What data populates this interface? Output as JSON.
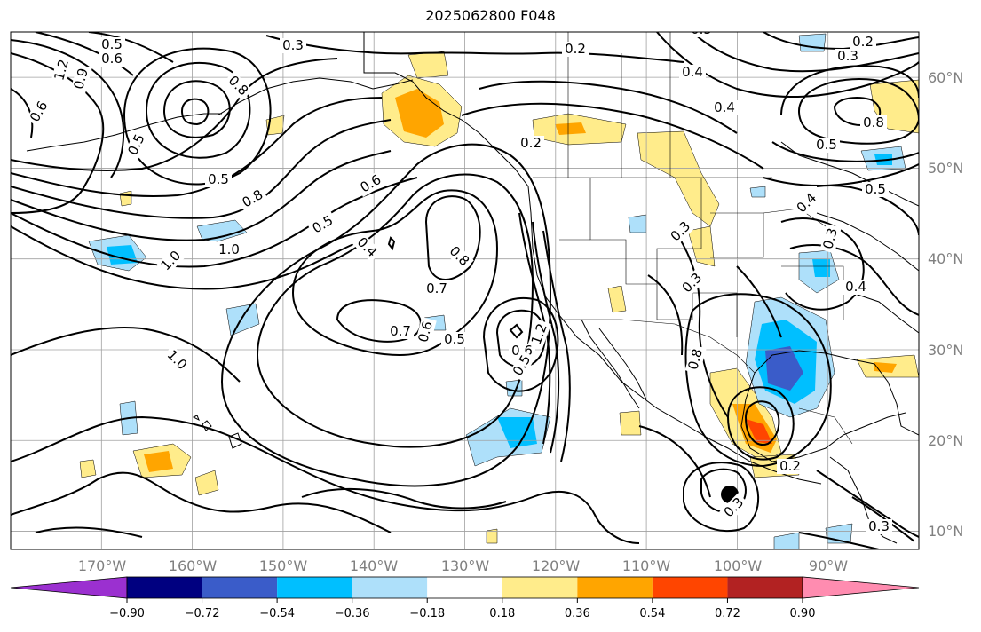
{
  "title": "2025062800 F048",
  "map": {
    "lon_range": [
      -180,
      -80
    ],
    "lat_range": [
      8,
      65
    ],
    "lon_ticks": [
      {
        "value": -170,
        "label": "170°W"
      },
      {
        "value": -160,
        "label": "160°W"
      },
      {
        "value": -150,
        "label": "150°W"
      },
      {
        "value": -140,
        "label": "140°W"
      },
      {
        "value": -130,
        "label": "130°W"
      },
      {
        "value": -120,
        "label": "120°W"
      },
      {
        "value": -110,
        "label": "110°W"
      },
      {
        "value": -100,
        "label": "100°W"
      },
      {
        "value": -90,
        "label": "90°W"
      }
    ],
    "lat_ticks": [
      {
        "value": 10,
        "label": "10°N"
      },
      {
        "value": 20,
        "label": "20°N"
      },
      {
        "value": 30,
        "label": "30°N"
      },
      {
        "value": 40,
        "label": "40°N"
      },
      {
        "value": 50,
        "label": "50°N"
      },
      {
        "value": 60,
        "label": "60°N"
      }
    ],
    "contour_labels": [
      "0.5",
      "0.6",
      "1.2",
      "0.9",
      "0.3",
      "0.2",
      "0.5",
      "0.4",
      "0.3",
      "0.2",
      "0.6",
      "0.5",
      "0.8",
      "0.5",
      "0.6",
      "0.5",
      "0.8",
      "1.0",
      "1.0",
      "0.5",
      "0.4",
      "0.8",
      "0.7",
      "0.6",
      "0.7",
      "0.6",
      "0.5",
      "1.2",
      "1.0",
      "0.8",
      "0.3",
      "0.3",
      "0.4",
      "0.2",
      "0.4",
      "0.3",
      "0.4",
      "0.3",
      "0.8",
      "0.5",
      "0.5",
      "0.2",
      "0.3"
    ]
  },
  "colorbar": {
    "ticks": [
      "−0.90",
      "−0.72",
      "−0.54",
      "−0.36",
      "−0.18",
      "0.18",
      "0.36",
      "0.54",
      "0.72",
      "0.90"
    ],
    "colors": [
      "#9b30d0",
      "#000080",
      "#3a5cc9",
      "#00bfff",
      "#aee0fa",
      "#ffffff",
      "#ffec8b",
      "#ffa500",
      "#ff4500",
      "#b22222",
      "#ff8cb0"
    ],
    "levels": [
      -0.9,
      -0.72,
      -0.54,
      -0.36,
      -0.18,
      0.18,
      0.36,
      0.54,
      0.72,
      0.9
    ]
  }
}
